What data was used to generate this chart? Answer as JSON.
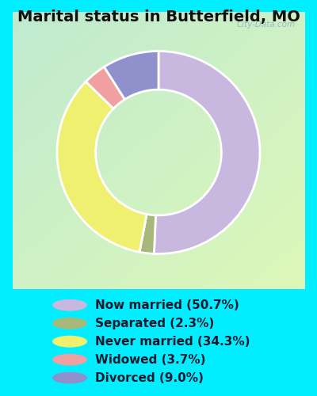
{
  "title": "Marital status in Butterfield, MO",
  "slices": [
    50.7,
    2.3,
    34.3,
    3.7,
    9.0
  ],
  "labels": [
    "Now married (50.7%)",
    "Separated (2.3%)",
    "Never married (34.3%)",
    "Widowed (3.7%)",
    "Divorced (9.0%)"
  ],
  "colors": [
    "#c8b8e0",
    "#a8b87a",
    "#f0f070",
    "#f0a0a0",
    "#9090cc"
  ],
  "chart_bg_color": "#c8eedd",
  "outer_bg_color": "#00eeff",
  "title_fontsize": 14,
  "legend_fontsize": 11,
  "watermark": "City-Data.com",
  "donut_width": 0.38,
  "startangle": 90,
  "slice_order": [
    0,
    1,
    2,
    3,
    4
  ]
}
